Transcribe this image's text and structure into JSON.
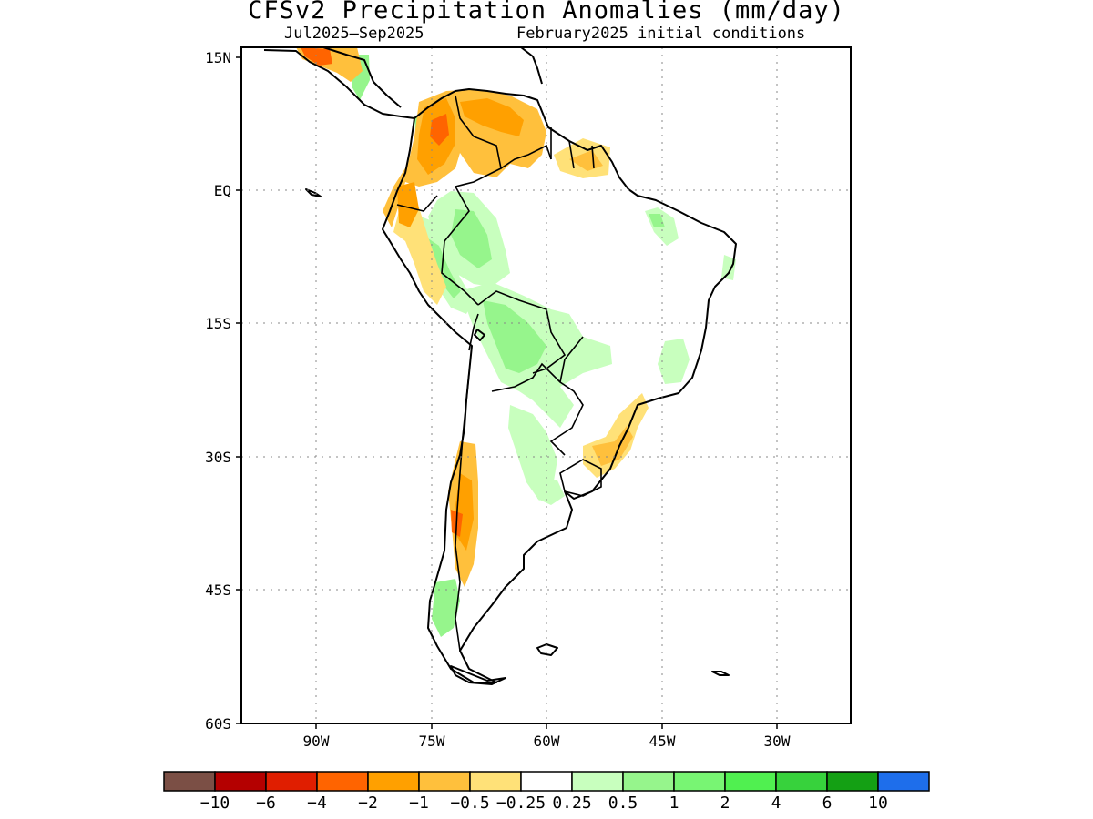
{
  "title": "CFSv2 Precipitation Anomalies (mm/day)",
  "subtitle_left": "Jul2025–Sep2025",
  "subtitle_right": "February2025 initial conditions",
  "map": {
    "region": "South America",
    "lon_range": [
      -102,
      -22
    ],
    "lat_range": [
      -60,
      16
    ],
    "lat_ticks": [
      "15N",
      "EQ",
      "15S",
      "30S",
      "45S",
      "60S"
    ],
    "lon_ticks": [
      "90W",
      "75W",
      "60W",
      "45W",
      "30W"
    ],
    "gridlines": "dotted"
  },
  "colorbar": {
    "colors": [
      "#7b4f45",
      "#b40000",
      "#e01e00",
      "#ff6400",
      "#ffa000",
      "#ffc03c",
      "#ffe178",
      "#ffffff",
      "#c8ffbe",
      "#96f58c",
      "#78f573",
      "#50f050",
      "#37d23c",
      "#14a014",
      "#1e6eeb"
    ],
    "labels": [
      "−10",
      "−6",
      "−4",
      "−2",
      "−1",
      "−0.5",
      "−0.25",
      "0.25",
      "0.5",
      "1",
      "2",
      "4",
      "6",
      "10"
    ]
  },
  "anomaly_regions": [
    {
      "name": "northwest-colombia-dry",
      "class": "-2 to -0.25"
    },
    {
      "name": "venezuela-dry",
      "class": "-1 to -0.25"
    },
    {
      "name": "guianas-dry",
      "class": "-0.5 to -0.25"
    },
    {
      "name": "central-america-dry",
      "class": "-2 to -0.25"
    },
    {
      "name": "ecuador-peru-coast-dry",
      "class": "-1 to -0.25"
    },
    {
      "name": "western-amazon-wet",
      "class": "0.25 to 1"
    },
    {
      "name": "bolivia-wet",
      "class": "0.25 to 1"
    },
    {
      "name": "southeast-brazil-dry",
      "class": "-1 to -0.25"
    },
    {
      "name": "central-chile-dry",
      "class": "-2 to -0.25"
    },
    {
      "name": "northeast-brazil-wet",
      "class": "0.25 to 0.5"
    },
    {
      "name": "patagonia-wet",
      "class": "0.25 to 0.5"
    }
  ]
}
